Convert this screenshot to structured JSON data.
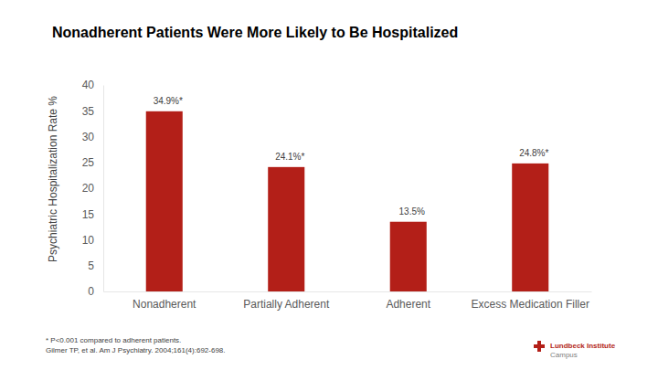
{
  "chart_data": {
    "type": "bar",
    "title": "Nonadherent Patients Were More Likely to Be Hospitalized",
    "y_label": "Psychiatric Hospitalization Rate %",
    "categories": [
      "Nonadherent",
      "Partially Adherent",
      "Adherent",
      "Excess Medication Filler"
    ],
    "values": [
      34.9,
      24.1,
      13.5,
      24.8
    ],
    "value_labels": [
      "34.9%*",
      "24.1%*",
      "13.5%",
      "24.8%*"
    ],
    "data_labels": true,
    "color": "#b31f18",
    "ylim": [
      0,
      40
    ],
    "yticks": [
      0,
      5,
      10,
      15,
      20,
      25,
      30,
      35,
      40
    ],
    "grid": false,
    "annotations": [
      "* P<0.001 compared to adherent patients.",
      "Gilmer TP, et al. Am J Psychiatry. 2004;161(4):692-698.",
      "Lundbeck Institute",
      "Campus"
    ]
  }
}
